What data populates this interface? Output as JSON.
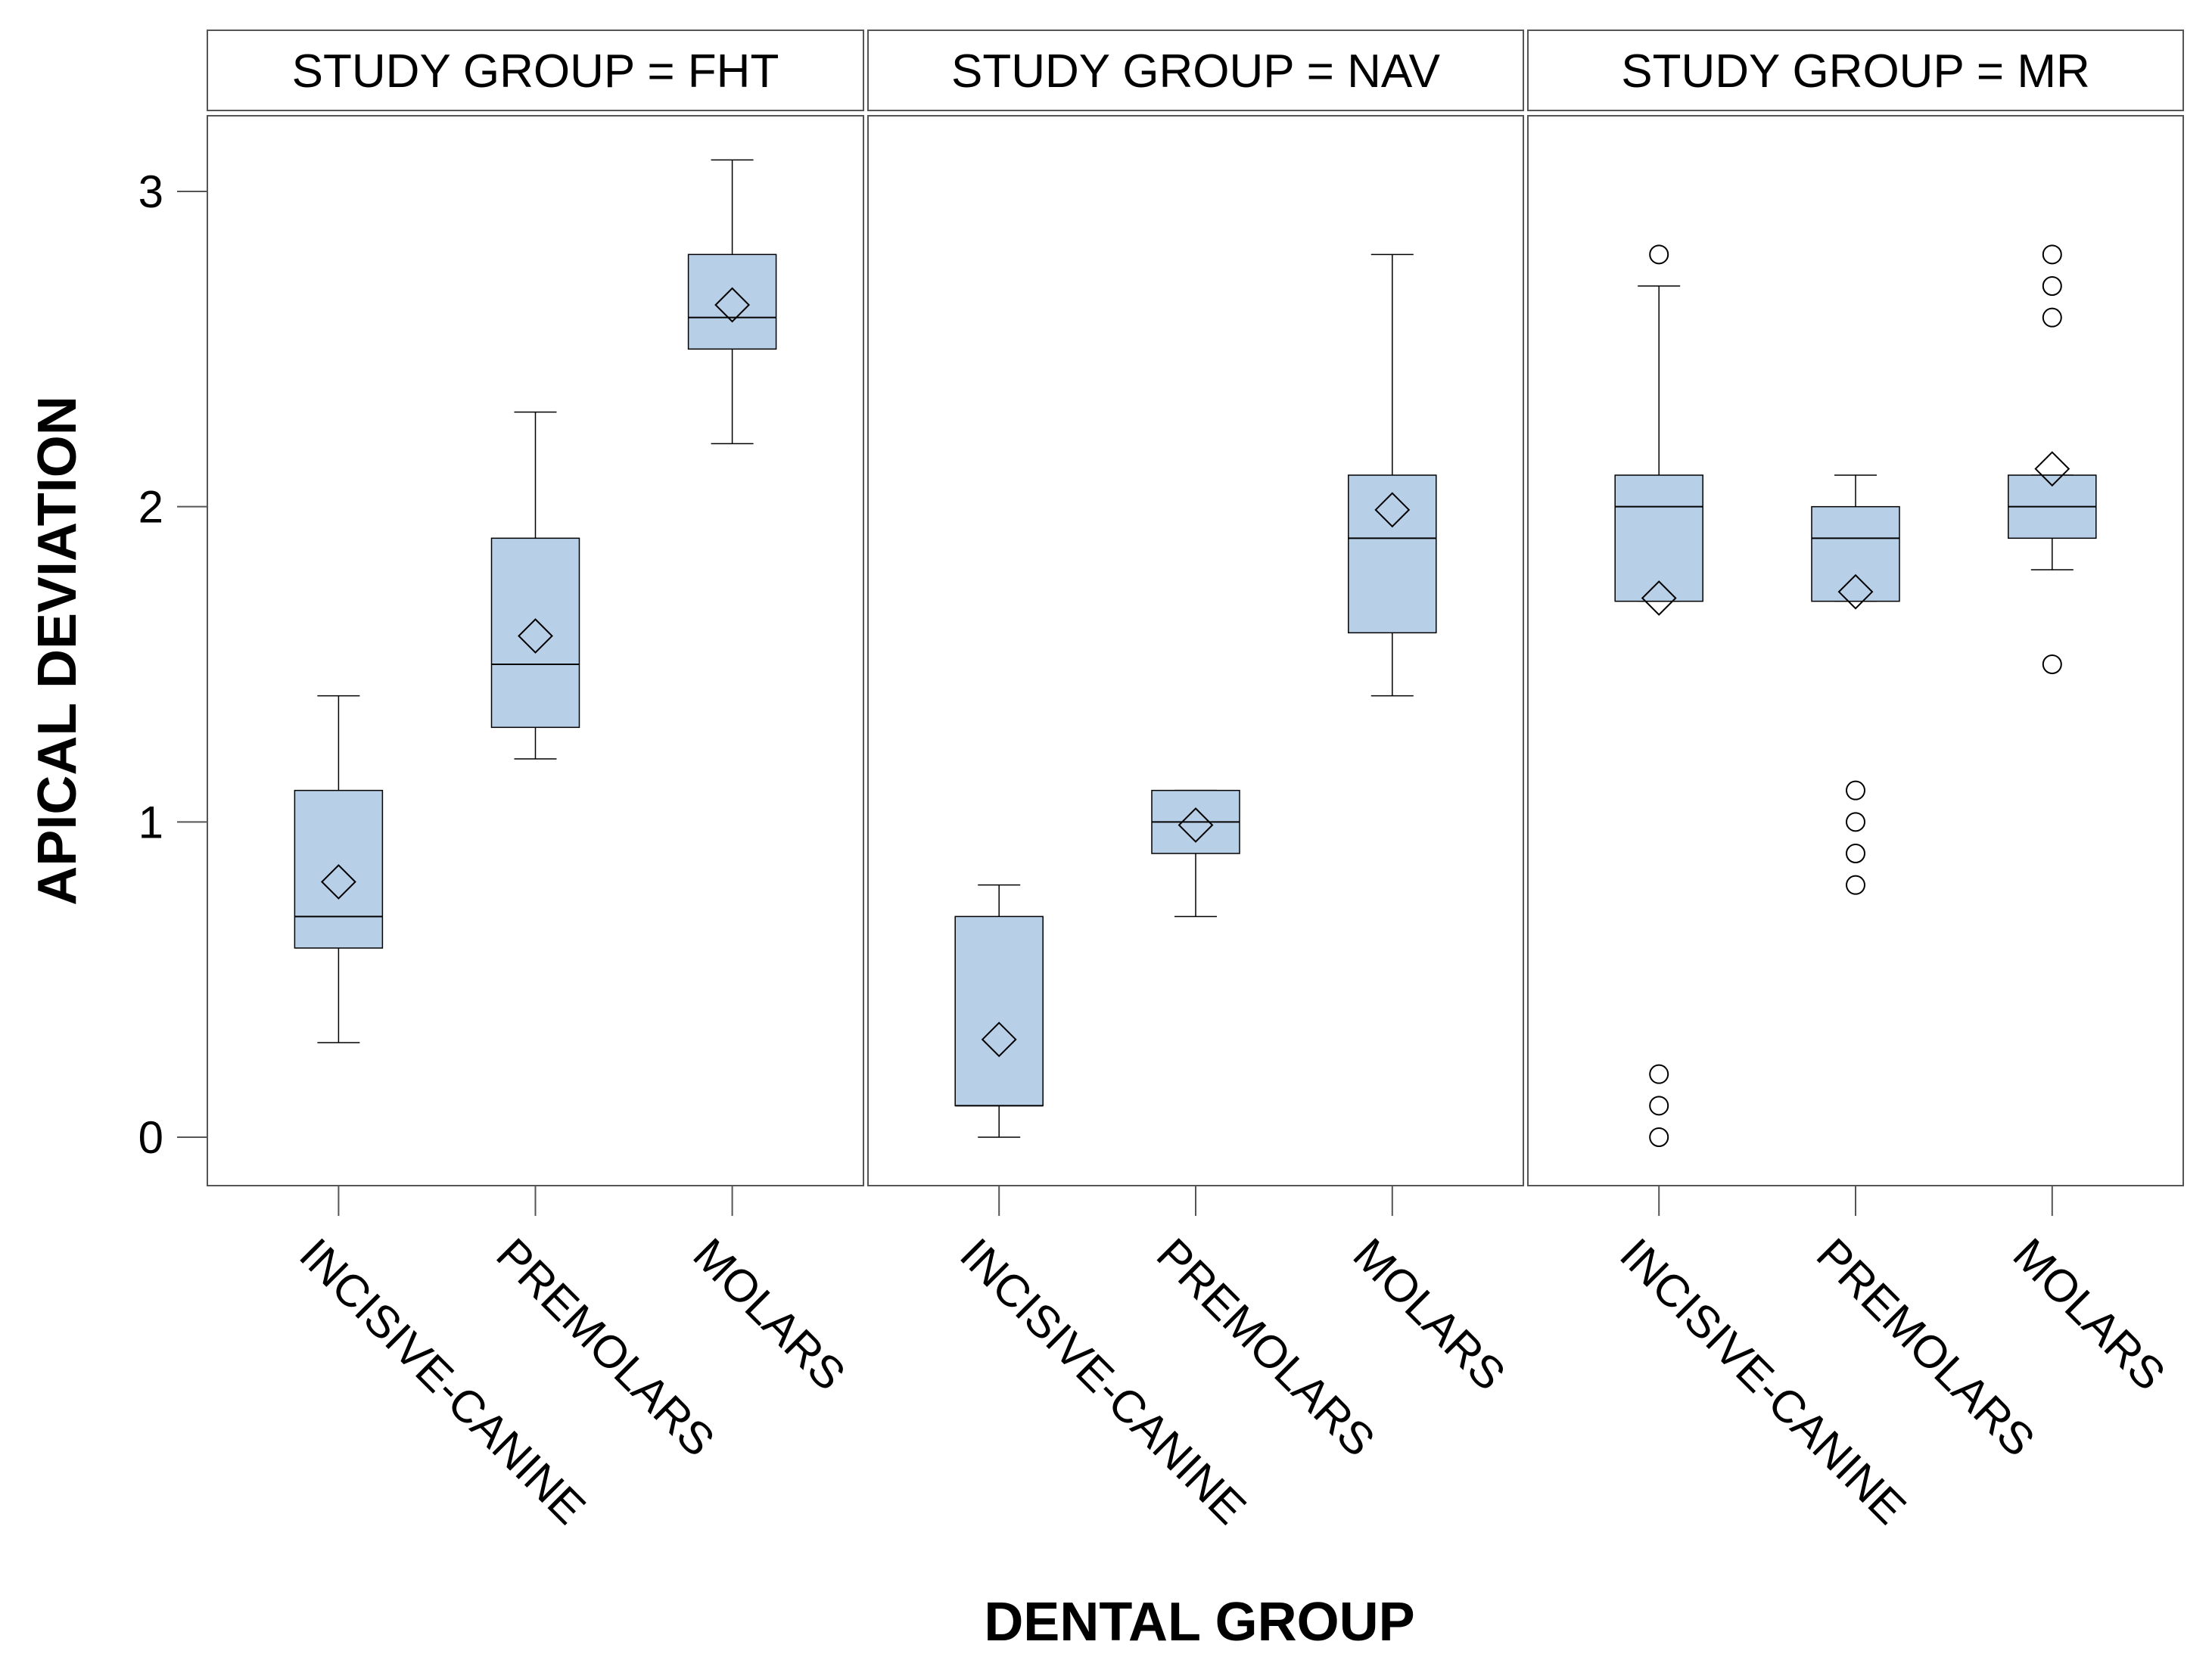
{
  "chart_data": {
    "type": "boxplot",
    "xlabel": "DENTAL GROUP",
    "ylabel": "APICAL DEVIATION",
    "ylim": [
      -0.15,
      3.25
    ],
    "yticks": [
      0,
      1,
      2,
      3
    ],
    "categories": [
      "INCISIVE-CANINE",
      "PREMOLARS",
      "MOLARS"
    ],
    "box_color": "#b8cfe8",
    "panels": [
      {
        "title": "STUDY GROUP = FHT",
        "boxes": [
          {
            "category": "INCISIVE-CANINE",
            "whisker_low": 0.3,
            "q1": 0.6,
            "median": 0.7,
            "q3": 1.1,
            "whisker_high": 1.4,
            "mean": 0.81,
            "outliers": []
          },
          {
            "category": "PREMOLARS",
            "whisker_low": 1.2,
            "q1": 1.3,
            "median": 1.5,
            "q3": 1.9,
            "whisker_high": 2.3,
            "mean": 1.59,
            "outliers": []
          },
          {
            "category": "MOLARS",
            "whisker_low": 2.2,
            "q1": 2.5,
            "median": 2.6,
            "q3": 2.8,
            "whisker_high": 3.1,
            "mean": 2.64,
            "outliers": []
          }
        ]
      },
      {
        "title": "STUDY GROUP = NAV",
        "boxes": [
          {
            "category": "INCISIVE-CANINE",
            "whisker_low": 0.0,
            "q1": 0.1,
            "median": 0.1,
            "q3": 0.7,
            "whisker_high": 0.8,
            "mean": 0.31,
            "outliers": []
          },
          {
            "category": "PREMOLARS",
            "whisker_low": 0.7,
            "q1": 0.9,
            "median": 1.0,
            "q3": 1.1,
            "whisker_high": 1.1,
            "mean": 0.99,
            "outliers": []
          },
          {
            "category": "MOLARS",
            "whisker_low": 1.4,
            "q1": 1.6,
            "median": 1.9,
            "q3": 2.1,
            "whisker_high": 2.8,
            "mean": 1.99,
            "outliers": []
          }
        ]
      },
      {
        "title": "STUDY GROUP = MR",
        "boxes": [
          {
            "category": "INCISIVE-CANINE",
            "whisker_low": 1.7,
            "q1": 1.7,
            "median": 2.0,
            "q3": 2.1,
            "whisker_high": 2.7,
            "mean": 1.71,
            "outliers": [
              2.8,
              0.2,
              0.1,
              0.0
            ]
          },
          {
            "category": "PREMOLARS",
            "whisker_low": 1.7,
            "q1": 1.7,
            "median": 1.9,
            "q3": 2.0,
            "whisker_high": 2.1,
            "mean": 1.73,
            "outliers": [
              1.1,
              1.0,
              0.9,
              0.8
            ]
          },
          {
            "category": "MOLARS",
            "whisker_low": 1.8,
            "q1": 1.9,
            "median": 2.0,
            "q3": 2.1,
            "whisker_high": 2.1,
            "mean": 2.12,
            "outliers": [
              2.8,
              2.7,
              2.6,
              1.5
            ]
          }
        ]
      }
    ]
  }
}
